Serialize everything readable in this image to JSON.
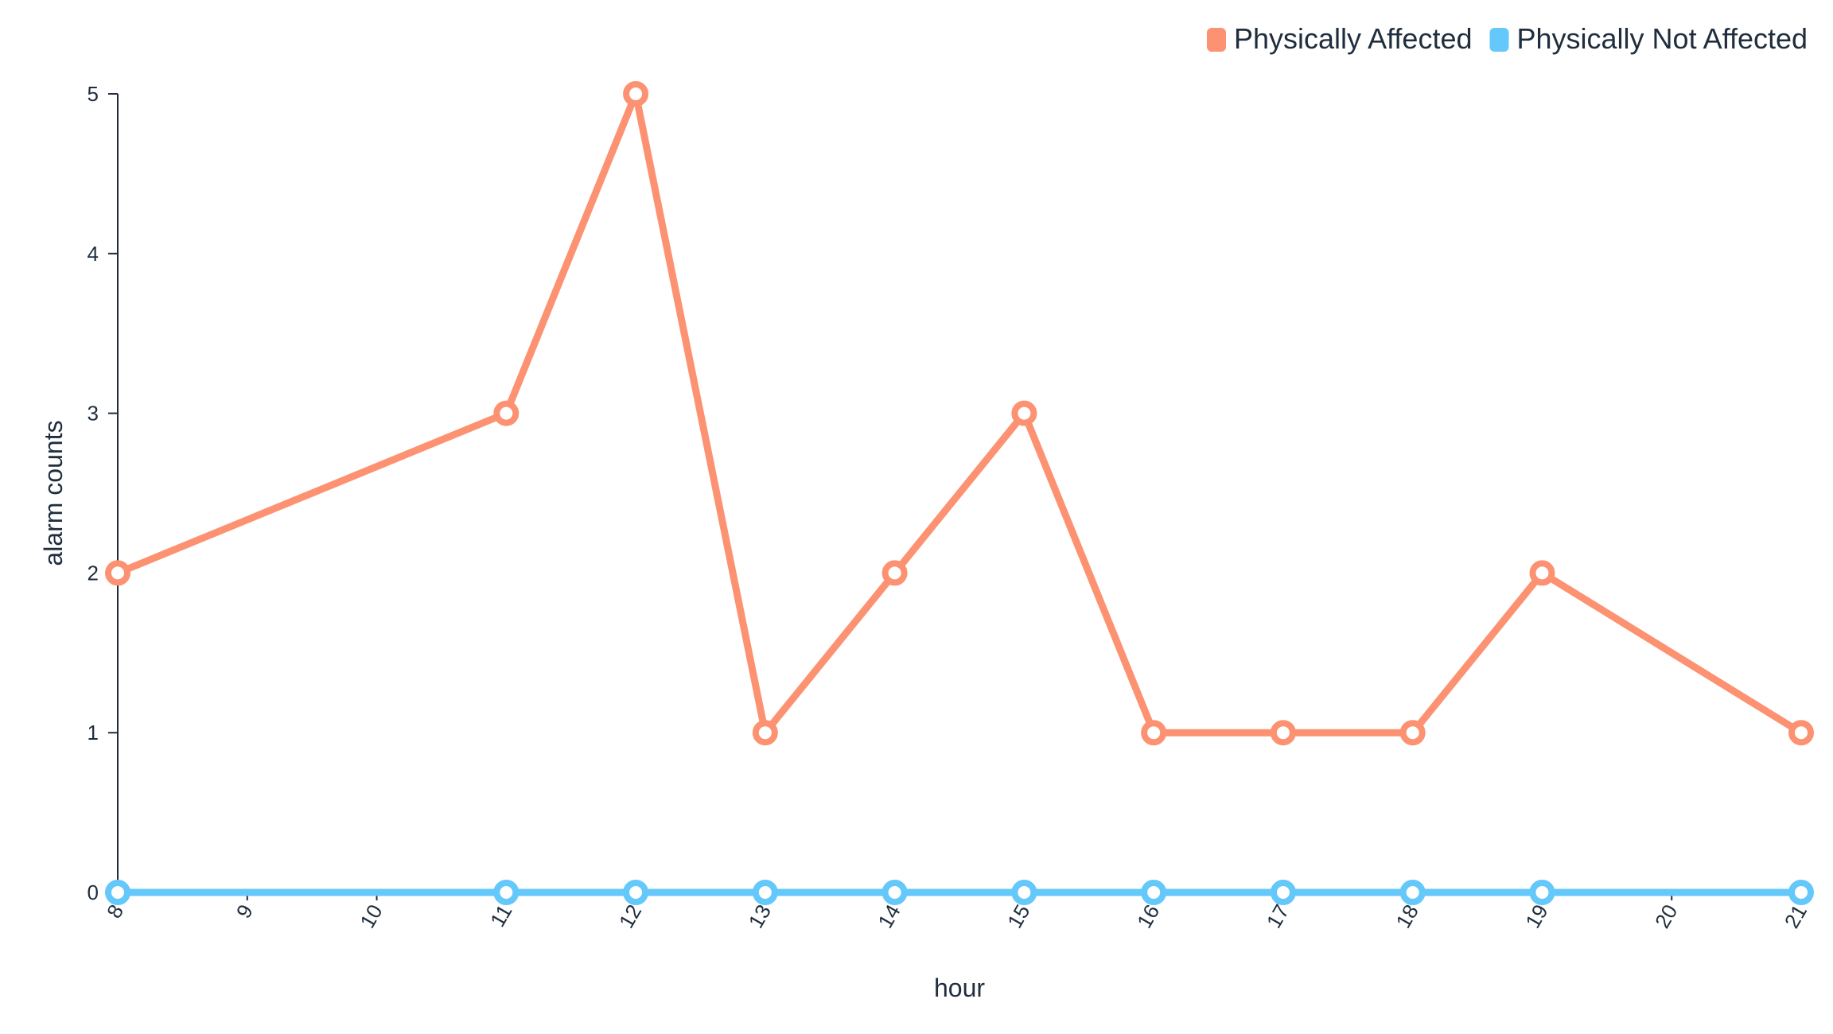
{
  "chart_data": {
    "type": "line",
    "x": [
      8,
      9,
      10,
      11,
      12,
      13,
      14,
      15,
      16,
      17,
      18,
      19,
      20,
      21
    ],
    "x_tick_labels": [
      "8",
      "9",
      "10",
      "11",
      "12",
      "13",
      "14",
      "15",
      "16",
      "17",
      "18",
      "19",
      "20",
      "21"
    ],
    "y_ticks": [
      0,
      1,
      2,
      3,
      4,
      5
    ],
    "y_tick_labels": [
      "0",
      "1",
      "2",
      "3",
      "4",
      "5"
    ],
    "xlabel": "hour",
    "ylabel": "alarm counts",
    "xlim": [
      8,
      21
    ],
    "ylim": [
      0,
      5
    ],
    "grid": false,
    "legend_position": "top-right",
    "series": [
      {
        "name": "Physically Affected",
        "color": "#fc9272",
        "points": [
          {
            "x": 8,
            "y": 2
          },
          {
            "x": 11,
            "y": 3
          },
          {
            "x": 12,
            "y": 5
          },
          {
            "x": 13,
            "y": 1
          },
          {
            "x": 14,
            "y": 2
          },
          {
            "x": 15,
            "y": 3
          },
          {
            "x": 16,
            "y": 1
          },
          {
            "x": 17,
            "y": 1
          },
          {
            "x": 18,
            "y": 1
          },
          {
            "x": 19,
            "y": 2
          },
          {
            "x": 21,
            "y": 1
          }
        ]
      },
      {
        "name": "Physically Not Affected",
        "color": "#64c8fa",
        "points": [
          {
            "x": 8,
            "y": 0
          },
          {
            "x": 11,
            "y": 0
          },
          {
            "x": 12,
            "y": 0
          },
          {
            "x": 13,
            "y": 0
          },
          {
            "x": 14,
            "y": 0
          },
          {
            "x": 15,
            "y": 0
          },
          {
            "x": 16,
            "y": 0
          },
          {
            "x": 17,
            "y": 0
          },
          {
            "x": 18,
            "y": 0
          },
          {
            "x": 19,
            "y": 0
          },
          {
            "x": 21,
            "y": 0
          }
        ]
      }
    ]
  }
}
